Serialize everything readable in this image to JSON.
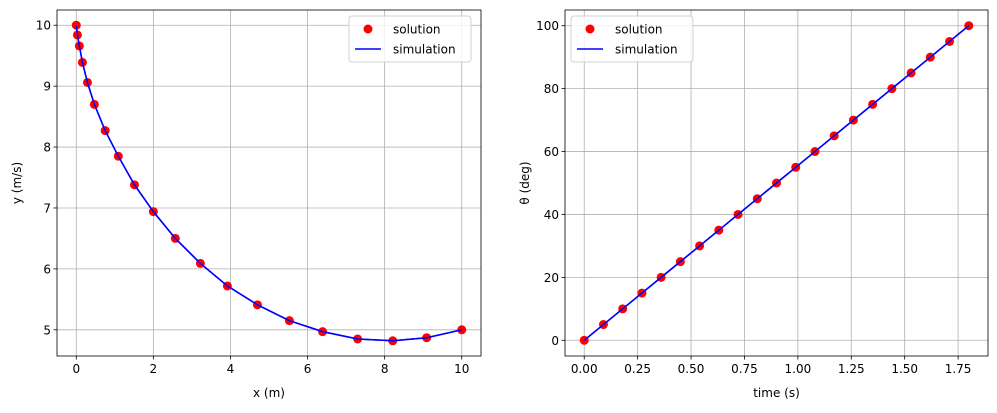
{
  "chart_data": [
    {
      "type": "line",
      "xlabel": "x (m)",
      "ylabel": "y (m/s)",
      "xlim": [
        -0.5,
        10.5
      ],
      "ylim": [
        4.57,
        10.25
      ],
      "xticks": [
        0,
        2,
        4,
        6,
        8,
        10
      ],
      "yticks": [
        5,
        6,
        7,
        8,
        9,
        10
      ],
      "grid": true,
      "legend": "top-right",
      "series": [
        {
          "name": "solution",
          "style": "markers",
          "color": "#ff0000",
          "x": [
            0,
            0.03,
            0.08,
            0.16,
            0.29,
            0.47,
            0.75,
            1.09,
            1.51,
            2.0,
            2.57,
            3.22,
            3.92,
            4.7,
            5.53,
            6.39,
            7.3,
            8.21,
            9.09,
            10.0
          ],
          "y": [
            10.0,
            9.84,
            9.66,
            9.39,
            9.06,
            8.7,
            8.27,
            7.85,
            7.38,
            6.94,
            6.5,
            6.09,
            5.72,
            5.41,
            5.15,
            4.97,
            4.85,
            4.82,
            4.87,
            5.0
          ]
        },
        {
          "name": "simulation",
          "style": "line",
          "color": "#0000ff",
          "x": [
            0,
            0.03,
            0.08,
            0.16,
            0.29,
            0.47,
            0.75,
            1.09,
            1.51,
            2.0,
            2.57,
            3.22,
            3.92,
            4.7,
            5.53,
            6.39,
            7.3,
            8.21,
            9.09,
            10.0
          ],
          "y": [
            10.0,
            9.84,
            9.66,
            9.39,
            9.06,
            8.7,
            8.27,
            7.85,
            7.38,
            6.94,
            6.5,
            6.09,
            5.72,
            5.41,
            5.15,
            4.97,
            4.85,
            4.82,
            4.87,
            5.0
          ]
        }
      ]
    },
    {
      "type": "line",
      "xlabel": "time (s)",
      "ylabel": "θ (deg)",
      "xlim": [
        -0.09,
        1.89
      ],
      "ylim": [
        -5,
        105
      ],
      "xticks": [
        0.0,
        0.25,
        0.5,
        0.75,
        1.0,
        1.25,
        1.5,
        1.75
      ],
      "xticklabels": [
        "0.00",
        "0.25",
        "0.50",
        "0.75",
        "1.00",
        "1.25",
        "1.50",
        "1.75"
      ],
      "yticks": [
        0,
        20,
        40,
        60,
        80,
        100
      ],
      "grid": true,
      "legend": "top-left",
      "series": [
        {
          "name": "solution",
          "style": "markers",
          "color": "#ff0000",
          "x": [
            0,
            0.09,
            0.18,
            0.27,
            0.36,
            0.45,
            0.54,
            0.63,
            0.72,
            0.81,
            0.9,
            0.99,
            1.08,
            1.17,
            1.26,
            1.35,
            1.44,
            1.53,
            1.62,
            1.71,
            1.8
          ],
          "y": [
            0,
            5,
            10,
            15,
            20,
            25,
            30,
            35,
            40,
            45,
            50,
            55,
            60,
            65,
            70,
            75,
            80,
            85,
            90,
            95,
            100
          ]
        },
        {
          "name": "simulation",
          "style": "line",
          "color": "#0000ff",
          "x": [
            0,
            0.09,
            0.18,
            0.27,
            0.36,
            0.45,
            0.54,
            0.63,
            0.72,
            0.81,
            0.9,
            0.99,
            1.08,
            1.17,
            1.26,
            1.35,
            1.44,
            1.53,
            1.62,
            1.71,
            1.8
          ],
          "y": [
            0,
            5,
            10,
            15,
            20,
            25,
            30,
            35,
            40,
            45,
            50,
            55,
            60,
            65,
            70,
            75,
            80,
            85,
            90,
            95,
            100
          ]
        }
      ]
    }
  ]
}
